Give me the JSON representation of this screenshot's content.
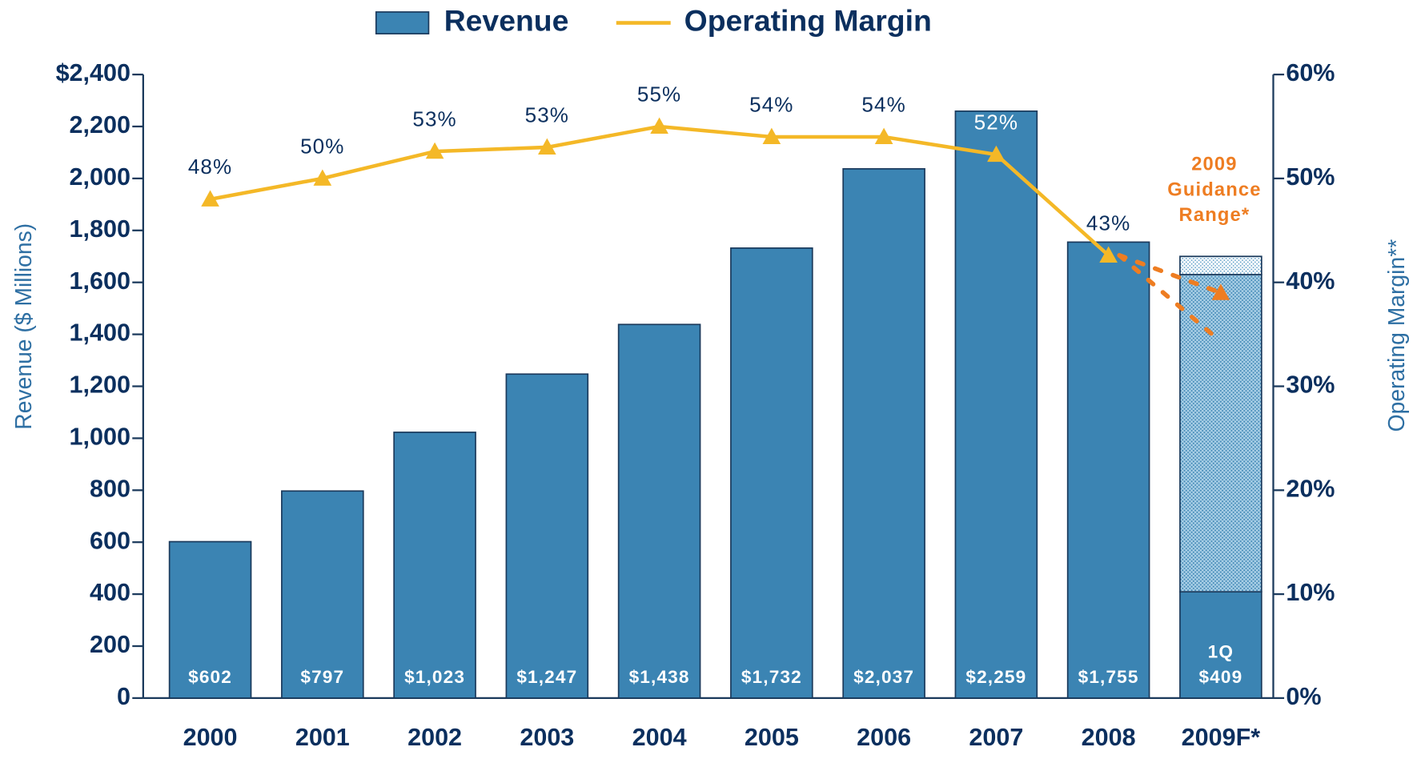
{
  "chart_data": {
    "type": "bar_line",
    "categories": [
      "2000",
      "2001",
      "2002",
      "2003",
      "2004",
      "2005",
      "2006",
      "2007",
      "2008",
      "2009F*"
    ],
    "series": [
      {
        "name": "Revenue",
        "color": "#3b84b3",
        "type": "bar",
        "values": [
          602,
          797,
          1023,
          1247,
          1438,
          1732,
          2037,
          2259,
          1755,
          409
        ],
        "value_labels": [
          "$602",
          "$797",
          "$1,023",
          "$1,247",
          "$1,438",
          "$1,732",
          "$2,037",
          "$2,259",
          "$1,755",
          "$409"
        ]
      },
      {
        "name": "Operating Margin",
        "color": "#f4b827",
        "type": "line",
        "axis": "y2",
        "values": [
          48,
          50,
          52.6,
          53,
          55,
          54,
          54,
          52.3,
          42.6,
          null
        ],
        "value_labels": [
          "48%",
          "50%",
          "53%",
          "53%",
          "55%",
          "54%",
          "54%",
          "52%",
          "43%",
          null
        ]
      }
    ],
    "forecast_range": [
      1221,
      70
    ],
    "quarter_label": "1Q",
    "guidance": {
      "lines": [
        "2009",
        "Guidance",
        "Range*"
      ],
      "high": 39,
      "low": 34.3,
      "color": "#ee7d22"
    },
    "ylabel": "Revenue ($ Millions)",
    "y2label": "Operating Margin**",
    "ylim": [
      0,
      2400
    ],
    "yticks": [
      0,
      200,
      400,
      600,
      800,
      {
        "value": 1000,
        "label": "1,000"
      },
      {
        "value": 1200,
        "label": "1,200"
      },
      {
        "value": 1400,
        "label": "1,400"
      },
      {
        "value": 1600,
        "label": "1,600"
      },
      {
        "value": 1800,
        "label": "1,800"
      },
      {
        "value": 2000,
        "label": "2,000"
      },
      {
        "value": 2200,
        "label": "2,200"
      },
      {
        "value": 2400,
        "label": "$2,400"
      }
    ],
    "y2lim": [
      0,
      60
    ],
    "y2ticks": [
      {
        "value": 0,
        "label": "0%"
      },
      {
        "value": 10,
        "label": "10%"
      },
      {
        "value": 20,
        "label": "20%"
      },
      {
        "value": 30,
        "label": "30%"
      },
      {
        "value": 40,
        "label": "40%"
      },
      {
        "value": 50,
        "label": "50%"
      },
      {
        "value": 60,
        "label": "60%"
      }
    ]
  }
}
